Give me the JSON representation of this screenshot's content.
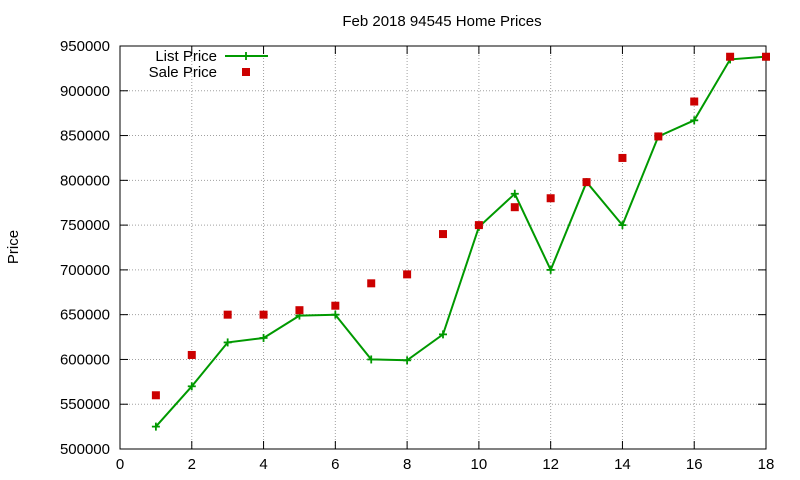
{
  "chart_data": {
    "type": "line",
    "title": "Feb 2018 94545 Home Prices",
    "xlabel": "",
    "ylabel": "Price",
    "xlim": [
      0,
      18
    ],
    "ylim": [
      500000,
      950000
    ],
    "x_ticks": [
      0,
      2,
      4,
      6,
      8,
      10,
      12,
      14,
      16,
      18
    ],
    "y_ticks": [
      500000,
      550000,
      600000,
      650000,
      700000,
      750000,
      800000,
      850000,
      900000,
      950000
    ],
    "grid": true,
    "legend_position": "top-left",
    "series": [
      {
        "name": "List Price",
        "style": "line-with-plus-markers",
        "color": "#009900",
        "x": [
          1,
          2,
          3,
          4,
          5,
          6,
          7,
          8,
          9,
          10,
          11,
          12,
          13,
          14,
          15,
          16,
          17,
          18
        ],
        "y": [
          525000,
          570000,
          619000,
          624000,
          649000,
          650000,
          600000,
          599000,
          628000,
          748000,
          785000,
          700000,
          798000,
          750000,
          849000,
          867000,
          935000,
          938000
        ]
      },
      {
        "name": "Sale Price",
        "style": "square-points",
        "color": "#cc0000",
        "x": [
          1,
          2,
          3,
          4,
          5,
          6,
          7,
          8,
          9,
          10,
          11,
          12,
          13,
          14,
          15,
          16,
          17,
          18
        ],
        "y": [
          560000,
          605000,
          650000,
          650000,
          655000,
          660000,
          685000,
          695000,
          740000,
          750000,
          770000,
          780000,
          798000,
          825000,
          849000,
          888000,
          938000,
          938000
        ]
      }
    ]
  }
}
